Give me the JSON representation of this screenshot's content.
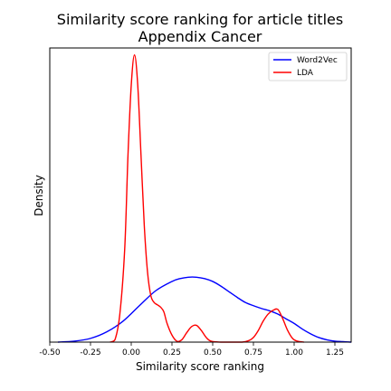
{
  "chart_data": {
    "type": "line",
    "title": "Similarity score ranking for article titles",
    "subtitle": "Appendix Cancer",
    "xlabel": "Similarity score ranking",
    "ylabel": "Density",
    "xlim": [
      -0.5,
      1.35
    ],
    "ylim": [
      0,
      6.3
    ],
    "xticks": [
      "-0.50",
      "-0.25",
      "0.00",
      "0.25",
      "0.50",
      "0.75",
      "1.00",
      "1.25"
    ],
    "xtick_values": [
      -0.5,
      -0.25,
      0.0,
      0.25,
      0.5,
      0.75,
      1.0,
      1.25
    ],
    "yticks_shown": false,
    "grid": false,
    "legend_position": "top-right",
    "series": [
      {
        "name": "Word2Vec",
        "color": "#0000ff",
        "x": [
          -0.45,
          -0.35,
          -0.25,
          -0.15,
          -0.05,
          0.05,
          0.15,
          0.25,
          0.3,
          0.35,
          0.4,
          0.45,
          0.5,
          0.55,
          0.6,
          0.65,
          0.7,
          0.75,
          0.8,
          0.85,
          0.9,
          0.95,
          1.0,
          1.05,
          1.1,
          1.15,
          1.2,
          1.25,
          1.3,
          1.35
        ],
        "y": [
          0.0,
          0.02,
          0.08,
          0.22,
          0.45,
          0.78,
          1.1,
          1.3,
          1.36,
          1.39,
          1.39,
          1.36,
          1.3,
          1.2,
          1.08,
          0.96,
          0.85,
          0.78,
          0.72,
          0.67,
          0.6,
          0.5,
          0.4,
          0.28,
          0.18,
          0.1,
          0.05,
          0.02,
          0.01,
          0.0
        ]
      },
      {
        "name": "LDA",
        "color": "#ff0000",
        "x": [
          -0.13,
          -0.1,
          -0.07,
          -0.04,
          -0.02,
          0.0,
          0.02,
          0.04,
          0.06,
          0.08,
          0.1,
          0.12,
          0.14,
          0.16,
          0.18,
          0.2,
          0.22,
          0.25,
          0.28,
          0.31,
          0.34,
          0.37,
          0.4,
          0.43,
          0.46,
          0.49,
          0.55,
          0.62,
          0.68,
          0.72,
          0.75,
          0.78,
          0.81,
          0.84,
          0.87,
          0.9,
          0.93,
          0.96,
          0.99,
          1.02,
          1.06
        ],
        "y": [
          0.0,
          0.05,
          0.6,
          2.0,
          4.0,
          5.5,
          6.15,
          5.5,
          4.0,
          2.5,
          1.5,
          1.0,
          0.85,
          0.8,
          0.75,
          0.65,
          0.4,
          0.15,
          0.02,
          0.05,
          0.2,
          0.33,
          0.36,
          0.25,
          0.1,
          0.02,
          0.0,
          0.0,
          0.0,
          0.03,
          0.1,
          0.25,
          0.45,
          0.6,
          0.68,
          0.7,
          0.5,
          0.25,
          0.08,
          0.02,
          0.0
        ]
      }
    ]
  }
}
